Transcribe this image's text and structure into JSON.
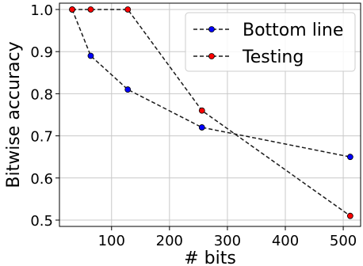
{
  "chart_data": {
    "type": "line",
    "title": "",
    "xlabel": "# bits",
    "ylabel": "Bitwise accuracy",
    "xlim": [
      10,
      530
    ],
    "ylim": [
      0.485,
      1.015
    ],
    "xticks": [
      100,
      200,
      300,
      400,
      500
    ],
    "xtick_labels": [
      "100",
      "200",
      "300",
      "400",
      "500"
    ],
    "yticks": [
      0.5,
      0.6,
      0.7,
      0.8,
      0.9,
      1.0
    ],
    "ytick_labels": [
      "0.5",
      "0.6",
      "0.7",
      "0.8",
      "0.9",
      "1.0"
    ],
    "grid": true,
    "legend_position": "upper right",
    "series": [
      {
        "name": "Bottom line",
        "color": "#0000ff",
        "line_style": "dashed",
        "marker": "circle",
        "x": [
          32,
          64,
          128,
          256,
          512
        ],
        "y": [
          1.0,
          0.89,
          0.81,
          0.72,
          0.65
        ]
      },
      {
        "name": "Testing",
        "color": "#ff0000",
        "line_style": "dashed",
        "marker": "circle",
        "x": [
          32,
          64,
          128,
          256,
          512
        ],
        "y": [
          1.0,
          1.0,
          1.0,
          0.76,
          0.51
        ]
      }
    ]
  }
}
